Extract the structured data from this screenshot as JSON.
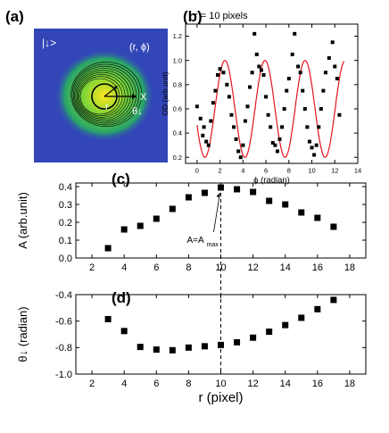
{
  "panel_labels": {
    "a": "(a)",
    "b": "(b)",
    "c": "(c)",
    "d": "(d)"
  },
  "image_a": {
    "state_label": "|↓>",
    "coord_label": "(r, ϕ)",
    "x_label": "X",
    "r_label": "r",
    "theta_label": "θ↓"
  },
  "colors": {
    "field": "#3346b8",
    "cloud_outer": "#27a36a",
    "cloud_mid": "#74d33a",
    "cloud_core": "#ffe61c",
    "fit_curve": "#e3141d",
    "marker": "#000000"
  },
  "chart_data": [
    {
      "id": "b",
      "type": "scatter",
      "title": "r = 10 pixels",
      "xlabel": "ϕ (radian)",
      "ylabel": "OD (arb.unit)",
      "xlim": [
        -1,
        14
      ],
      "ylim": [
        0.15,
        1.3
      ],
      "xticks": [
        0,
        2,
        4,
        6,
        8,
        10,
        12,
        14
      ],
      "yticks": [
        0.2,
        0.4,
        0.6,
        0.8,
        1.0,
        1.2
      ],
      "ytick_labels": [
        "0.2",
        "0.4",
        "0.6",
        "0.8",
        "1.0",
        "1.2"
      ],
      "grid": false,
      "points": [
        [
          0.0,
          0.62
        ],
        [
          0.3,
          0.52
        ],
        [
          0.5,
          0.38
        ],
        [
          0.6,
          0.45
        ],
        [
          0.8,
          0.33
        ],
        [
          1.0,
          0.3
        ],
        [
          1.2,
          0.5
        ],
        [
          1.4,
          0.65
        ],
        [
          1.6,
          0.75
        ],
        [
          1.8,
          0.88
        ],
        [
          2.0,
          0.93
        ],
        [
          2.3,
          0.9
        ],
        [
          2.6,
          0.8
        ],
        [
          2.8,
          0.7
        ],
        [
          3.0,
          0.55
        ],
        [
          3.2,
          0.45
        ],
        [
          3.4,
          0.35
        ],
        [
          3.6,
          0.25
        ],
        [
          3.8,
          0.2
        ],
        [
          4.0,
          0.3
        ],
        [
          4.2,
          0.5
        ],
        [
          4.4,
          0.62
        ],
        [
          4.6,
          0.78
        ],
        [
          4.8,
          0.9
        ],
        [
          5.0,
          1.22
        ],
        [
          5.2,
          1.05
        ],
        [
          5.4,
          0.95
        ],
        [
          5.6,
          0.92
        ],
        [
          5.8,
          0.88
        ],
        [
          6.0,
          0.7
        ],
        [
          6.2,
          0.55
        ],
        [
          6.4,
          0.45
        ],
        [
          6.6,
          0.32
        ],
        [
          6.8,
          0.3
        ],
        [
          7.0,
          0.25
        ],
        [
          7.2,
          0.35
        ],
        [
          7.4,
          0.45
        ],
        [
          7.6,
          0.6
        ],
        [
          7.8,
          0.75
        ],
        [
          8.0,
          0.85
        ],
        [
          8.3,
          1.05
        ],
        [
          8.5,
          1.22
        ],
        [
          8.8,
          0.95
        ],
        [
          9.0,
          0.9
        ],
        [
          9.2,
          0.75
        ],
        [
          9.4,
          0.6
        ],
        [
          9.6,
          0.45
        ],
        [
          9.8,
          0.33
        ],
        [
          10.0,
          0.28
        ],
        [
          10.2,
          0.22
        ],
        [
          10.4,
          0.3
        ],
        [
          10.6,
          0.45
        ],
        [
          10.8,
          0.6
        ],
        [
          11.0,
          0.75
        ],
        [
          11.2,
          0.9
        ],
        [
          11.5,
          1.02
        ],
        [
          11.8,
          1.15
        ],
        [
          12.0,
          0.95
        ],
        [
          12.2,
          0.85
        ],
        [
          12.4,
          0.55
        ]
      ],
      "fit": {
        "form": "sinusoid",
        "offset": 0.6,
        "amplitude": 0.4,
        "frequency": 1.8,
        "phase": -2.8
      }
    },
    {
      "id": "c",
      "type": "scatter",
      "title": "",
      "xlabel": "",
      "ylabel": "A (arb.unit)",
      "xlim": [
        1,
        19
      ],
      "ylim": [
        0,
        0.42
      ],
      "xticks": [
        2,
        4,
        6,
        8,
        10,
        12,
        14,
        16,
        18
      ],
      "yticks": [
        0.0,
        0.1,
        0.2,
        0.3,
        0.4
      ],
      "ytick_labels": [
        "0.0",
        "0.1",
        "0.2",
        "0.3",
        "0.4"
      ],
      "grid": false,
      "points": [
        [
          3,
          0.055
        ],
        [
          4,
          0.16
        ],
        [
          5,
          0.18
        ],
        [
          6,
          0.22
        ],
        [
          7,
          0.275
        ],
        [
          8,
          0.34
        ],
        [
          9,
          0.365
        ],
        [
          10,
          0.395
        ],
        [
          11,
          0.385
        ],
        [
          12,
          0.37
        ],
        [
          13,
          0.32
        ],
        [
          14,
          0.3
        ],
        [
          15,
          0.255
        ],
        [
          16,
          0.225
        ],
        [
          17,
          0.175
        ]
      ],
      "annotation": {
        "text": "A=A",
        "sub": "max",
        "x": 10,
        "y": 0.395
      }
    },
    {
      "id": "d",
      "type": "scatter",
      "title": "",
      "xlabel": "r (pixel)",
      "ylabel": "θ↓ (radian)",
      "xlim": [
        1,
        19
      ],
      "ylim": [
        -1.0,
        -0.4
      ],
      "xticks": [
        2,
        4,
        6,
        8,
        10,
        12,
        14,
        16,
        18
      ],
      "yticks": [
        -1.0,
        -0.8,
        -0.6,
        -0.4
      ],
      "ytick_labels": [
        "-1.0",
        "-0.8",
        "-0.6",
        "-0.4"
      ],
      "grid": false,
      "points": [
        [
          3,
          -0.585
        ],
        [
          4,
          -0.675
        ],
        [
          5,
          -0.795
        ],
        [
          6,
          -0.815
        ],
        [
          7,
          -0.82
        ],
        [
          8,
          -0.8
        ],
        [
          9,
          -0.79
        ],
        [
          10,
          -0.78
        ],
        [
          11,
          -0.76
        ],
        [
          12,
          -0.725
        ],
        [
          13,
          -0.68
        ],
        [
          14,
          -0.63
        ],
        [
          15,
          -0.575
        ],
        [
          16,
          -0.51
        ],
        [
          17,
          -0.44
        ]
      ],
      "reference_x": 10
    }
  ]
}
